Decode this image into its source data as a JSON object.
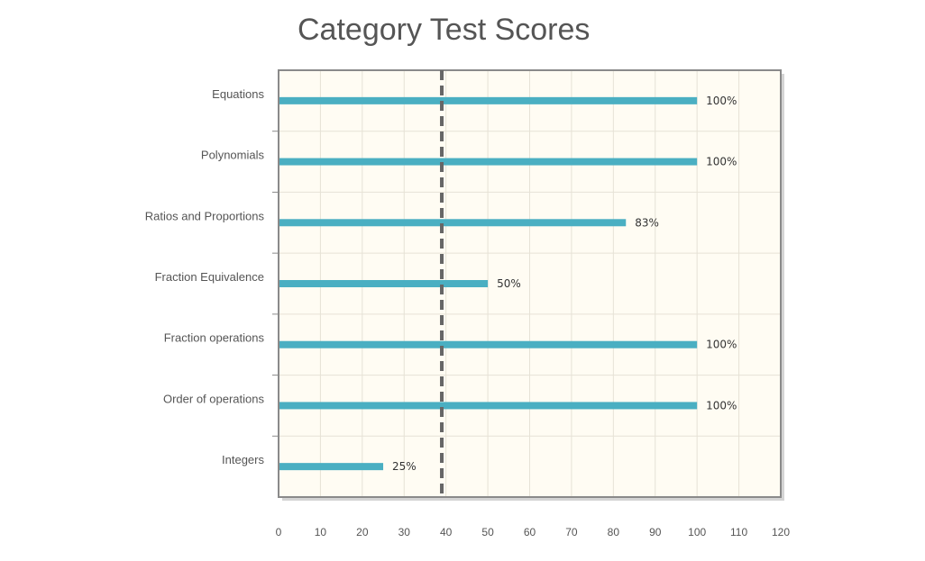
{
  "chart_data": {
    "type": "bar",
    "orientation": "horizontal",
    "title": "Category Test Scores",
    "xlabel": "",
    "ylabel": "",
    "categories": [
      "Equations",
      "Polynomials",
      "Ratios and Proportions",
      "Fraction Equivalence",
      "Fraction operations",
      "Order of operations",
      "Integers"
    ],
    "values": [
      100,
      100,
      83,
      50,
      100,
      100,
      25
    ],
    "data_labels": [
      "100%",
      "100%",
      "83%",
      "50%",
      "100%",
      "100%",
      "25%"
    ],
    "xlim": [
      0,
      120
    ],
    "xticks": [
      0,
      10,
      20,
      30,
      40,
      50,
      60,
      70,
      80,
      90,
      100,
      110,
      120
    ],
    "reference_line": 39,
    "grid": true,
    "legend": "none",
    "colors": {
      "bar": "#4aafc2",
      "plot_background": "#fffcf3",
      "grid": "#e6e2d6",
      "axis": "#8a8a8a",
      "reference_line": "#666666"
    }
  }
}
